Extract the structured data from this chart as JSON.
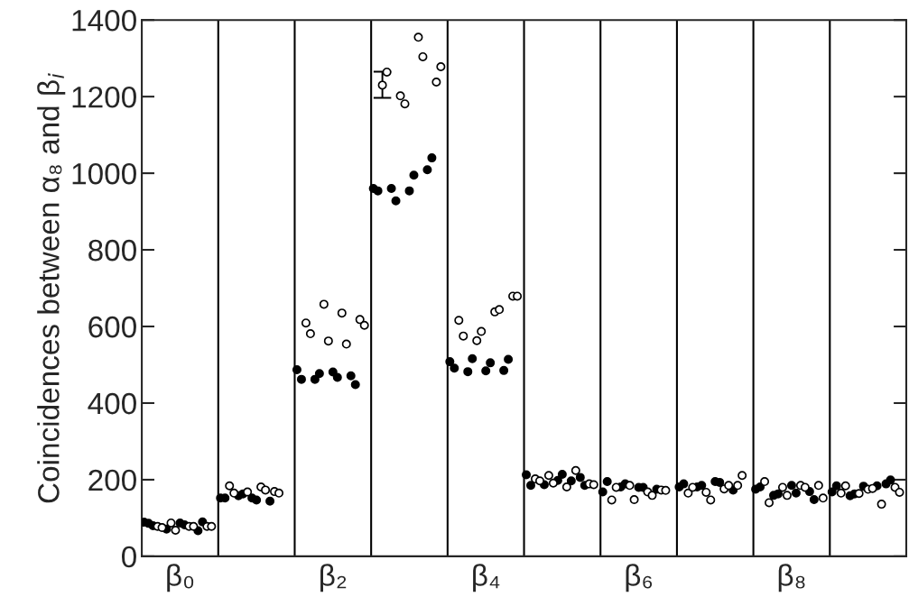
{
  "chart_data": {
    "type": "scatter",
    "ylabel": "Coincidences between α₈ and β$_{i}$",
    "categories": [
      null,
      null,
      null,
      null,
      null,
      null,
      null,
      null,
      "β₀",
      null,
      null,
      null,
      null,
      null,
      null,
      null,
      null,
      null,
      null,
      null,
      null,
      null,
      null,
      null,
      null,
      null,
      null,
      null,
      null,
      null,
      null,
      null,
      null,
      null,
      null,
      null,
      null,
      null,
      null,
      null,
      null,
      null,
      "β₂",
      null,
      null,
      null,
      null,
      null,
      null,
      null,
      null,
      null,
      null,
      null,
      null,
      null,
      null,
      null,
      null,
      null,
      null,
      null,
      null,
      null,
      null,
      null,
      null,
      null,
      null,
      null,
      null,
      null,
      null,
      null,
      null,
      null,
      "β₄",
      null,
      null,
      null,
      null,
      null,
      null,
      null,
      null,
      null,
      null,
      null,
      null,
      null,
      null,
      null,
      null,
      null,
      null,
      null,
      null,
      null,
      null,
      null,
      null,
      null,
      null,
      null,
      null,
      null,
      null,
      null,
      null,
      null,
      "β₆",
      null,
      null,
      null,
      null,
      null,
      null,
      null,
      null,
      null,
      null,
      null,
      null,
      null,
      null,
      null,
      null,
      null,
      null,
      null,
      null,
      null,
      null,
      null,
      null,
      null,
      null,
      null,
      null,
      null,
      null,
      null,
      null,
      null,
      "β₈",
      null,
      null,
      null,
      null,
      null,
      null,
      null,
      null,
      null,
      null,
      null,
      null,
      null,
      null,
      null,
      null,
      null,
      null,
      null,
      null,
      null,
      null,
      null,
      null,
      null
    ],
    "ylim": [
      0,
      1400
    ],
    "yticks": [
      0,
      200,
      400,
      600,
      800,
      1000,
      1200,
      1400
    ],
    "grid": false,
    "marker": "circle",
    "series": [
      {
        "color": "#000000",
        "values": [
          89,
          86,
          80,
          null,
          null,
          71,
          null,
          null,
          87,
          82,
          null,
          null,
          67,
          90,
          null,
          null,
          null,
          152,
          152,
          null,
          null,
          158,
          163,
          null,
          152,
          147,
          null,
          null,
          144,
          null,
          null,
          null,
          null,
          null,
          487,
          462,
          null,
          null,
          462,
          477,
          null,
          null,
          481,
          467,
          null,
          null,
          471,
          448,
          null,
          null,
          null,
          960,
          954,
          null,
          null,
          960,
          928,
          null,
          null,
          954,
          995,
          null,
          null,
          1009,
          1040,
          null,
          null,
          null,
          508,
          491,
          null,
          null,
          482,
          516,
          null,
          null,
          484,
          505,
          null,
          null,
          485,
          514,
          null,
          null,
          null,
          213,
          185,
          null,
          null,
          187,
          null,
          null,
          198,
          214,
          null,
          197,
          null,
          206,
          185,
          null,
          null,
          null,
          168,
          195,
          null,
          null,
          181,
          189,
          null,
          null,
          180,
          180,
          null,
          null,
          175,
          null,
          null,
          null,
          null,
          181,
          189,
          null,
          null,
          181,
          185,
          null,
          null,
          195,
          193,
          null,
          null,
          173,
          null,
          null,
          null,
          null,
          175,
          181,
          null,
          null,
          159,
          163,
          null,
          null,
          185,
          165,
          null,
          null,
          169,
          148,
          null,
          null,
          null,
          168,
          184,
          null,
          null,
          158,
          163,
          null,
          183,
          null,
          null,
          184,
          null,
          189,
          199,
          null,
          null,
          null
        ]
      },
      {
        "color": "#ffffff",
        "values": [
          null,
          null,
          null,
          78,
          75,
          null,
          87,
          68,
          null,
          null,
          78,
          78,
          null,
          null,
          78,
          78,
          null,
          null,
          null,
          184,
          165,
          null,
          null,
          168,
          null,
          null,
          181,
          173,
          null,
          169,
          165,
          null,
          null,
          null,
          null,
          null,
          609,
          581,
          null,
          null,
          658,
          562,
          null,
          null,
          635,
          554,
          null,
          null,
          618,
          603,
          null,
          null,
          null,
          1230,
          1264,
          null,
          null,
          1202,
          1181,
          null,
          null,
          1355,
          1304,
          null,
          null,
          1238,
          1278,
          null,
          null,
          null,
          616,
          575,
          null,
          null,
          563,
          587,
          null,
          null,
          638,
          644,
          null,
          null,
          679,
          679,
          null,
          null,
          null,
          202,
          197,
          null,
          211,
          191,
          null,
          null,
          181,
          null,
          224,
          null,
          null,
          189,
          187,
          null,
          null,
          null,
          147,
          180,
          null,
          null,
          185,
          148,
          null,
          null,
          168,
          159,
          null,
          173,
          172,
          null,
          null,
          null,
          null,
          165,
          180,
          null,
          null,
          167,
          147,
          null,
          null,
          176,
          185,
          null,
          185,
          211,
          null,
          null,
          null,
          null,
          195,
          140,
          null,
          null,
          180,
          159,
          null,
          null,
          185,
          180,
          null,
          null,
          185,
          152,
          null,
          null,
          null,
          165,
          184,
          null,
          null,
          164,
          null,
          175,
          177,
          null,
          136,
          null,
          null,
          180,
          167,
          null
        ],
        "errors": [
          null,
          null,
          null,
          null,
          null,
          null,
          null,
          null,
          null,
          null,
          null,
          null,
          null,
          null,
          null,
          null,
          null,
          null,
          null,
          null,
          null,
          null,
          null,
          null,
          null,
          null,
          null,
          null,
          null,
          null,
          null,
          null,
          null,
          null,
          null,
          null,
          null,
          null,
          null,
          null,
          null,
          null,
          null,
          null,
          null,
          null,
          null,
          null,
          null,
          null,
          null,
          null,
          null,
          [
            1197,
            1265
          ],
          null,
          null,
          null,
          null,
          null,
          null,
          null,
          null,
          null,
          null,
          null,
          null,
          null,
          null,
          null,
          null,
          null,
          null,
          null,
          null,
          null,
          null,
          null,
          null,
          null,
          null,
          null,
          null,
          null,
          null,
          null,
          null,
          null,
          null,
          null,
          null,
          null,
          null,
          null,
          null,
          null,
          null,
          null,
          null,
          null,
          null,
          null,
          null,
          null,
          null,
          null,
          null,
          null,
          null,
          null,
          null,
          null,
          null,
          null,
          null,
          null,
          null,
          null,
          null,
          null,
          null,
          null,
          null,
          null,
          null,
          null,
          null,
          null,
          null,
          null,
          null,
          null,
          null,
          null,
          null,
          null,
          null,
          null,
          null,
          null,
          null,
          null,
          null,
          null,
          null,
          null,
          null,
          null,
          null,
          null,
          null,
          null,
          null,
          null,
          null,
          null,
          null,
          null,
          null,
          null,
          null,
          null,
          null,
          null,
          null,
          null,
          null,
          null,
          null,
          null,
          null
        ]
      }
    ]
  }
}
